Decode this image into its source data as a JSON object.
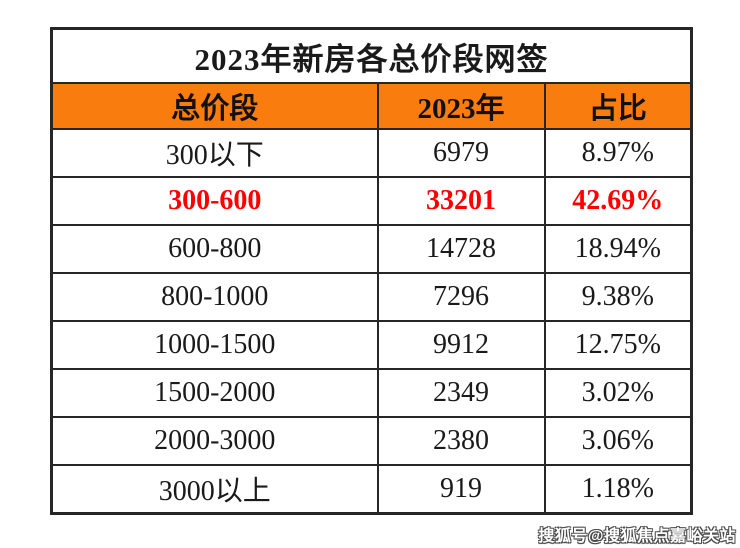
{
  "chart_data": {
    "type": "table",
    "title": "2023年新房各总价段网签",
    "columns": [
      "总价段",
      "2023年",
      "占比"
    ],
    "rows": [
      {
        "segment": "300以下",
        "count": "6979",
        "share": "8.97%",
        "highlight": false
      },
      {
        "segment": "300-600",
        "count": "33201",
        "share": "42.69%",
        "highlight": true
      },
      {
        "segment": "600-800",
        "count": "14728",
        "share": "18.94%",
        "highlight": false
      },
      {
        "segment": "800-1000",
        "count": "7296",
        "share": "9.38%",
        "highlight": false
      },
      {
        "segment": "1000-1500",
        "count": "9912",
        "share": "12.75%",
        "highlight": false
      },
      {
        "segment": "1500-2000",
        "count": "2349",
        "share": "3.02%",
        "highlight": false
      },
      {
        "segment": "2000-3000",
        "count": "2380",
        "share": "3.06%",
        "highlight": false
      },
      {
        "segment": "3000以上",
        "count": "919",
        "share": "1.18%",
        "highlight": false
      }
    ]
  },
  "watermark": "搜狐号@搜狐焦点嘉峪关站",
  "colors": {
    "header_bg": "#F97C0F",
    "highlight_text": "#FE0000",
    "border": "#262626",
    "text": "#1a1a1a",
    "watermark_fill": "#ffffff",
    "watermark_outline": "#4a4a4a"
  }
}
